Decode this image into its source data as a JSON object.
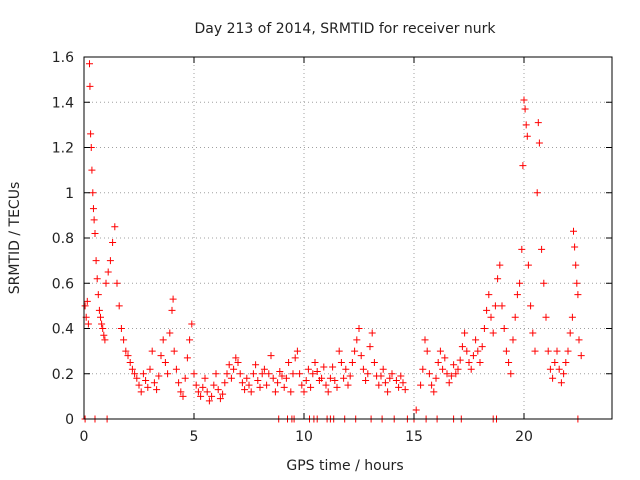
{
  "chart_data": {
    "type": "scatter",
    "title": "Day 213 of 2014, SRMTID for receiver nurk",
    "xlabel": "GPS time / hours",
    "ylabel": "SRMTID / TECUs",
    "xlim": [
      0,
      24
    ],
    "ylim": [
      0,
      1.6
    ],
    "xticks": [
      0,
      5,
      10,
      15,
      20
    ],
    "xtick_labels": [
      "0",
      "5",
      "10",
      "15",
      "20"
    ],
    "yticks": [
      0,
      0.2,
      0.4,
      0.6,
      0.8,
      1.0,
      1.2,
      1.4,
      1.6
    ],
    "ytick_labels": [
      "0",
      "0.2",
      "0.4",
      "0.6",
      "0.8",
      "1",
      "1.2",
      "1.4",
      "1.6"
    ],
    "grid": true,
    "marker": "plus",
    "series": [
      {
        "name": "SRMTID",
        "color": "#ff0000",
        "points": [
          [
            0.05,
            0.5
          ],
          [
            0.1,
            0.45
          ],
          [
            0.15,
            0.52
          ],
          [
            0.2,
            0.42
          ],
          [
            0.25,
            1.57
          ],
          [
            0.27,
            1.47
          ],
          [
            0.3,
            1.26
          ],
          [
            0.33,
            1.2
          ],
          [
            0.36,
            1.1
          ],
          [
            0.4,
            1.0
          ],
          [
            0.43,
            0.93
          ],
          [
            0.46,
            0.88
          ],
          [
            0.5,
            0.82
          ],
          [
            0.55,
            0.7
          ],
          [
            0.6,
            0.62
          ],
          [
            0.65,
            0.55
          ],
          [
            0.7,
            0.48
          ],
          [
            0.75,
            0.45
          ],
          [
            0.8,
            0.42
          ],
          [
            0.85,
            0.4
          ],
          [
            0.9,
            0.37
          ],
          [
            0.95,
            0.35
          ],
          [
            1.0,
            0.6
          ],
          [
            1.1,
            0.65
          ],
          [
            1.2,
            0.7
          ],
          [
            1.3,
            0.78
          ],
          [
            1.4,
            0.85
          ],
          [
            1.5,
            0.6
          ],
          [
            1.6,
            0.5
          ],
          [
            1.7,
            0.4
          ],
          [
            1.8,
            0.35
          ],
          [
            1.9,
            0.3
          ],
          [
            2.0,
            0.28
          ],
          [
            2.1,
            0.25
          ],
          [
            2.2,
            0.22
          ],
          [
            2.3,
            0.2
          ],
          [
            2.4,
            0.18
          ],
          [
            2.5,
            0.15
          ],
          [
            2.6,
            0.12
          ],
          [
            2.7,
            0.2
          ],
          [
            2.8,
            0.17
          ],
          [
            2.9,
            0.14
          ],
          [
            3.0,
            0.22
          ],
          [
            3.1,
            0.3
          ],
          [
            3.2,
            0.16
          ],
          [
            3.3,
            0.13
          ],
          [
            3.4,
            0.19
          ],
          [
            3.5,
            0.28
          ],
          [
            3.6,
            0.35
          ],
          [
            3.7,
            0.25
          ],
          [
            3.8,
            0.2
          ],
          [
            3.9,
            0.38
          ],
          [
            4.0,
            0.48
          ],
          [
            4.05,
            0.53
          ],
          [
            4.1,
            0.3
          ],
          [
            4.2,
            0.22
          ],
          [
            4.3,
            0.16
          ],
          [
            4.4,
            0.12
          ],
          [
            4.5,
            0.1
          ],
          [
            4.6,
            0.18
          ],
          [
            4.7,
            0.27
          ],
          [
            4.8,
            0.35
          ],
          [
            4.9,
            0.42
          ],
          [
            5.0,
            0.2
          ],
          [
            5.1,
            0.15
          ],
          [
            5.2,
            0.12
          ],
          [
            5.3,
            0.1
          ],
          [
            5.4,
            0.14
          ],
          [
            5.5,
            0.18
          ],
          [
            5.6,
            0.12
          ],
          [
            5.7,
            0.08
          ],
          [
            5.8,
            0.1
          ],
          [
            5.9,
            0.15
          ],
          [
            6.0,
            0.2
          ],
          [
            6.1,
            0.13
          ],
          [
            6.2,
            0.09
          ],
          [
            6.3,
            0.11
          ],
          [
            6.4,
            0.16
          ],
          [
            6.5,
            0.2
          ],
          [
            6.6,
            0.24
          ],
          [
            6.7,
            0.18
          ],
          [
            6.8,
            0.22
          ],
          [
            6.9,
            0.27
          ],
          [
            7.0,
            0.25
          ],
          [
            7.1,
            0.2
          ],
          [
            7.2,
            0.16
          ],
          [
            7.3,
            0.13
          ],
          [
            7.4,
            0.18
          ],
          [
            7.5,
            0.15
          ],
          [
            7.6,
            0.12
          ],
          [
            7.7,
            0.2
          ],
          [
            7.8,
            0.24
          ],
          [
            7.9,
            0.17
          ],
          [
            8.0,
            0.14
          ],
          [
            8.1,
            0.2
          ],
          [
            8.2,
            0.22
          ],
          [
            8.3,
            0.15
          ],
          [
            8.4,
            0.2
          ],
          [
            8.5,
            0.28
          ],
          [
            8.6,
            0.18
          ],
          [
            8.7,
            0.12
          ],
          [
            8.8,
            0.16
          ],
          [
            8.9,
            0.21
          ],
          [
            9.0,
            0.19
          ],
          [
            9.1,
            0.14
          ],
          [
            9.2,
            0.18
          ],
          [
            9.3,
            0.25
          ],
          [
            9.4,
            0.12
          ],
          [
            9.5,
            0.2
          ],
          [
            9.6,
            0.27
          ],
          [
            9.7,
            0.3
          ],
          [
            9.8,
            0.2
          ],
          [
            9.9,
            0.15
          ],
          [
            10.0,
            0.12
          ],
          [
            10.1,
            0.17
          ],
          [
            10.2,
            0.22
          ],
          [
            10.3,
            0.14
          ],
          [
            10.4,
            0.2
          ],
          [
            10.5,
            0.25
          ],
          [
            10.6,
            0.21
          ],
          [
            10.7,
            0.17
          ],
          [
            10.8,
            0.18
          ],
          [
            10.9,
            0.23
          ],
          [
            11.0,
            0.15
          ],
          [
            11.1,
            0.12
          ],
          [
            11.2,
            0.18
          ],
          [
            11.3,
            0.23
          ],
          [
            11.4,
            0.17
          ],
          [
            11.5,
            0.14
          ],
          [
            11.6,
            0.3
          ],
          [
            11.7,
            0.25
          ],
          [
            11.8,
            0.18
          ],
          [
            11.9,
            0.22
          ],
          [
            12.0,
            0.15
          ],
          [
            12.1,
            0.19
          ],
          [
            12.2,
            0.25
          ],
          [
            12.3,
            0.3
          ],
          [
            12.4,
            0.35
          ],
          [
            12.5,
            0.4
          ],
          [
            12.6,
            0.28
          ],
          [
            12.7,
            0.22
          ],
          [
            12.8,
            0.17
          ],
          [
            12.9,
            0.2
          ],
          [
            13.0,
            0.32
          ],
          [
            13.1,
            0.38
          ],
          [
            13.2,
            0.25
          ],
          [
            13.3,
            0.19
          ],
          [
            13.4,
            0.15
          ],
          [
            13.5,
            0.19
          ],
          [
            13.6,
            0.22
          ],
          [
            13.7,
            0.16
          ],
          [
            13.8,
            0.12
          ],
          [
            13.9,
            0.18
          ],
          [
            14.0,
            0.2
          ],
          [
            14.2,
            0.17
          ],
          [
            14.3,
            0.14
          ],
          [
            14.4,
            0.19
          ],
          [
            14.5,
            0.16
          ],
          [
            14.6,
            0.13
          ],
          [
            15.1,
            0.04
          ],
          [
            15.3,
            0.15
          ],
          [
            15.4,
            0.22
          ],
          [
            15.5,
            0.35
          ],
          [
            15.6,
            0.3
          ],
          [
            15.7,
            0.2
          ],
          [
            15.8,
            0.15
          ],
          [
            15.9,
            0.12
          ],
          [
            16.0,
            0.18
          ],
          [
            16.1,
            0.25
          ],
          [
            16.2,
            0.3
          ],
          [
            16.3,
            0.22
          ],
          [
            16.4,
            0.27
          ],
          [
            16.5,
            0.2
          ],
          [
            16.6,
            0.16
          ],
          [
            16.7,
            0.19
          ],
          [
            16.8,
            0.24
          ],
          [
            16.9,
            0.2
          ],
          [
            17.0,
            0.22
          ],
          [
            17.1,
            0.26
          ],
          [
            17.2,
            0.32
          ],
          [
            17.3,
            0.38
          ],
          [
            17.4,
            0.3
          ],
          [
            17.5,
            0.25
          ],
          [
            17.6,
            0.22
          ],
          [
            17.7,
            0.28
          ],
          [
            17.8,
            0.35
          ],
          [
            17.9,
            0.3
          ],
          [
            18.0,
            0.25
          ],
          [
            18.1,
            0.32
          ],
          [
            18.2,
            0.4
          ],
          [
            18.3,
            0.48
          ],
          [
            18.4,
            0.55
          ],
          [
            18.5,
            0.45
          ],
          [
            18.6,
            0.38
          ],
          [
            18.7,
            0.5
          ],
          [
            18.8,
            0.62
          ],
          [
            18.9,
            0.68
          ],
          [
            19.0,
            0.5
          ],
          [
            19.1,
            0.4
          ],
          [
            19.2,
            0.3
          ],
          [
            19.3,
            0.25
          ],
          [
            19.4,
            0.2
          ],
          [
            19.5,
            0.35
          ],
          [
            19.6,
            0.45
          ],
          [
            19.7,
            0.55
          ],
          [
            19.8,
            0.6
          ],
          [
            19.9,
            0.75
          ],
          [
            19.95,
            1.12
          ],
          [
            20.0,
            1.41
          ],
          [
            20.05,
            1.37
          ],
          [
            20.1,
            1.3
          ],
          [
            20.15,
            1.25
          ],
          [
            20.2,
            0.68
          ],
          [
            20.3,
            0.5
          ],
          [
            20.4,
            0.38
          ],
          [
            20.5,
            0.3
          ],
          [
            20.6,
            1.0
          ],
          [
            20.65,
            1.31
          ],
          [
            20.7,
            1.22
          ],
          [
            20.8,
            0.75
          ],
          [
            20.9,
            0.6
          ],
          [
            21.0,
            0.45
          ],
          [
            21.1,
            0.3
          ],
          [
            21.2,
            0.22
          ],
          [
            21.3,
            0.18
          ],
          [
            21.4,
            0.25
          ],
          [
            21.5,
            0.3
          ],
          [
            21.6,
            0.22
          ],
          [
            21.7,
            0.16
          ],
          [
            21.8,
            0.2
          ],
          [
            21.9,
            0.25
          ],
          [
            22.0,
            0.3
          ],
          [
            22.1,
            0.38
          ],
          [
            22.2,
            0.45
          ],
          [
            22.25,
            0.83
          ],
          [
            22.3,
            0.76
          ],
          [
            22.35,
            0.68
          ],
          [
            22.4,
            0.6
          ],
          [
            22.45,
            0.55
          ],
          [
            22.5,
            0.35
          ],
          [
            22.6,
            0.28
          ]
        ],
        "zero_points": [
          0.05,
          0.5,
          1.05,
          8.85,
          9.25,
          9.45,
          9.55,
          10.25,
          10.45,
          10.6,
          11.05,
          11.2,
          11.35,
          11.85,
          12.35,
          13.05,
          13.55,
          14.1,
          14.7,
          15.0,
          15.55,
          16.05,
          16.8,
          17.15,
          18.6,
          18.75,
          22.45
        ]
      }
    ]
  }
}
